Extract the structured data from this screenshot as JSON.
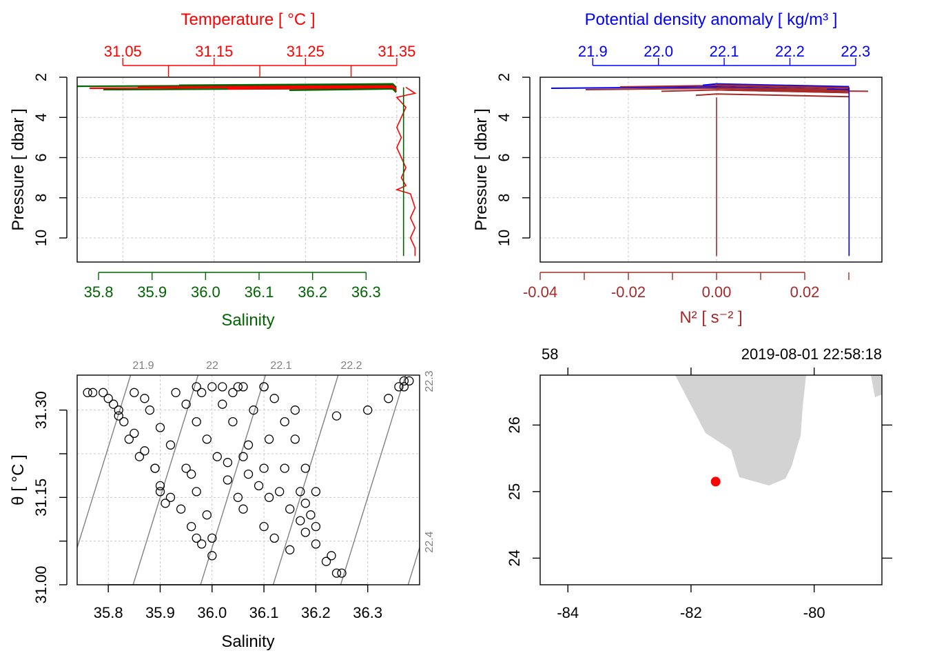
{
  "colors": {
    "temperature": "#ff0000",
    "salinity": "#006400",
    "density": "#0000ff",
    "n2": "#a52a2a",
    "land": "#d3d3d3",
    "station": "#ff0000",
    "isopycnal": "#808080"
  },
  "chart_data": [
    {
      "type": "line",
      "title": "",
      "top_axis_label": "Temperature [ °C ]",
      "top_ticks": [
        "31.05",
        "31.15",
        "31.25",
        "31.35"
      ],
      "top_range": [
        31.0,
        31.375
      ],
      "bottom_axis_label": "Salinity",
      "bottom_ticks": [
        "35.8",
        "35.9",
        "36.0",
        "36.1",
        "36.2",
        "36.3"
      ],
      "bottom_range": [
        35.76,
        36.4
      ],
      "ylabel": "Pressure [ dbar ]",
      "y_ticks": [
        "2",
        "4",
        "6",
        "8",
        "10"
      ],
      "ylim": [
        11.2,
        2.0
      ],
      "grid": true,
      "series": [
        {
          "name": "Temperature",
          "axis": "top",
          "points": [
            [
              31.36,
              2.5
            ],
            [
              31.37,
              2.8
            ],
            [
              31.35,
              3.0
            ],
            [
              31.36,
              3.5
            ],
            [
              31.355,
              4.0
            ],
            [
              31.35,
              4.5
            ],
            [
              31.355,
              5.0
            ],
            [
              31.35,
              5.5
            ],
            [
              31.355,
              6.0
            ],
            [
              31.36,
              6.5
            ],
            [
              31.355,
              7.0
            ],
            [
              31.36,
              7.4
            ],
            [
              31.35,
              7.6
            ],
            [
              31.365,
              7.8
            ],
            [
              31.37,
              8.5
            ],
            [
              31.365,
              9.0
            ],
            [
              31.37,
              9.5
            ],
            [
              31.365,
              10.0
            ],
            [
              31.37,
              10.5
            ],
            [
              31.37,
              10.9
            ]
          ]
        },
        {
          "name": "Salinity",
          "axis": "bottom",
          "points": [
            [
              36.37,
              2.5
            ],
            [
              36.37,
              3.0
            ],
            [
              36.37,
              4.0
            ],
            [
              36.37,
              5.0
            ],
            [
              36.37,
              6.0
            ],
            [
              36.37,
              7.0
            ],
            [
              36.37,
              8.0
            ],
            [
              36.37,
              9.0
            ],
            [
              36.37,
              10.0
            ],
            [
              36.37,
              10.9
            ]
          ]
        }
      ]
    },
    {
      "type": "line",
      "title": "",
      "top_axis_label": "Potential density anomaly [ kg/m³ ]",
      "top_ticks": [
        "21.9",
        "22.0",
        "22.1",
        "22.2",
        "22.3"
      ],
      "top_range": [
        21.82,
        22.34
      ],
      "bottom_axis_label": "N² [ s⁻² ]",
      "bottom_ticks": [
        "-0.04",
        "-0.02",
        "0.00",
        "0.02"
      ],
      "bottom_range": [
        -0.04,
        0.0375
      ],
      "ylabel": "Pressure [ dbar ]",
      "y_ticks": [
        "2",
        "4",
        "6",
        "8",
        "10"
      ],
      "ylim": [
        11.2,
        2.0
      ],
      "grid": true,
      "series": [
        {
          "name": "Potential density anomaly",
          "axis": "top",
          "points": [
            [
              22.29,
              2.5
            ],
            [
              22.29,
              3.0
            ],
            [
              22.29,
              4.0
            ],
            [
              22.29,
              5.0
            ],
            [
              22.29,
              6.0
            ],
            [
              22.29,
              7.0
            ],
            [
              22.29,
              7.5
            ],
            [
              22.29,
              8.0
            ],
            [
              22.29,
              9.0
            ],
            [
              22.29,
              10.0
            ],
            [
              22.29,
              10.9
            ]
          ]
        },
        {
          "name": "N²",
          "axis": "bottom",
          "points": [
            [
              0.0,
              3.0
            ],
            [
              0.0,
              4.0
            ],
            [
              0.0,
              5.0
            ],
            [
              0.0,
              6.0
            ],
            [
              0.0,
              7.0
            ],
            [
              0.0,
              8.0
            ],
            [
              0.0,
              9.0
            ],
            [
              0.0,
              10.0
            ],
            [
              0.0,
              10.9
            ]
          ]
        }
      ]
    },
    {
      "type": "scatter",
      "title": "",
      "xlabel": "Salinity",
      "ylabel": "θ [ °C ]",
      "x_ticks": [
        "35.8",
        "35.9",
        "36.0",
        "36.1",
        "36.2",
        "36.3"
      ],
      "xlim": [
        35.74,
        36.4
      ],
      "y_ticks": [
        "31.00",
        "31.15",
        "31.30"
      ],
      "ylim": [
        31.0,
        31.36
      ],
      "grid": true,
      "isopycnal_labels": [
        "21.9",
        "22",
        "22.1",
        "22.2",
        "22.3",
        "22.4"
      ],
      "points": [
        [
          35.76,
          31.33
        ],
        [
          35.77,
          31.33
        ],
        [
          35.79,
          31.33
        ],
        [
          35.8,
          31.32
        ],
        [
          35.81,
          31.31
        ],
        [
          35.82,
          31.3
        ],
        [
          35.83,
          31.28
        ],
        [
          35.85,
          31.26
        ],
        [
          35.87,
          31.23
        ],
        [
          35.89,
          31.2
        ],
        [
          35.9,
          31.17
        ],
        [
          35.92,
          31.15
        ],
        [
          35.94,
          31.13
        ],
        [
          35.85,
          31.33
        ],
        [
          35.87,
          31.32
        ],
        [
          35.88,
          31.3
        ],
        [
          35.9,
          31.27
        ],
        [
          35.92,
          31.24
        ],
        [
          35.95,
          31.2
        ],
        [
          35.97,
          31.16
        ],
        [
          35.99,
          31.12
        ],
        [
          36.0,
          31.08
        ],
        [
          36.0,
          31.05
        ],
        [
          35.93,
          31.33
        ],
        [
          35.95,
          31.31
        ],
        [
          35.97,
          31.28
        ],
        [
          35.99,
          31.25
        ],
        [
          36.01,
          31.22
        ],
        [
          36.03,
          31.18
        ],
        [
          36.05,
          31.15
        ],
        [
          36.06,
          31.13
        ],
        [
          36.0,
          31.34
        ],
        [
          36.02,
          31.31
        ],
        [
          36.04,
          31.28
        ],
        [
          36.07,
          31.24
        ],
        [
          36.1,
          31.2
        ],
        [
          36.13,
          31.16
        ],
        [
          36.15,
          31.13
        ],
        [
          36.17,
          31.11
        ],
        [
          36.2,
          31.07
        ],
        [
          36.22,
          31.04
        ],
        [
          36.24,
          31.02
        ],
        [
          36.25,
          31.02
        ],
        [
          36.05,
          31.34
        ],
        [
          36.08,
          31.3
        ],
        [
          36.11,
          31.25
        ],
        [
          36.14,
          31.2
        ],
        [
          36.17,
          31.16
        ],
        [
          36.18,
          31.14
        ],
        [
          36.1,
          31.34
        ],
        [
          36.12,
          31.32
        ],
        [
          36.14,
          31.28
        ],
        [
          36.16,
          31.25
        ],
        [
          36.18,
          31.2
        ],
        [
          36.2,
          31.16
        ],
        [
          35.97,
          31.34
        ],
        [
          36.02,
          31.34
        ],
        [
          36.06,
          31.34
        ],
        [
          36.1,
          31.34
        ],
        [
          35.98,
          31.33
        ],
        [
          36.04,
          31.33
        ],
        [
          36.36,
          31.34
        ],
        [
          36.37,
          31.35
        ],
        [
          36.38,
          31.35
        ],
        [
          36.37,
          31.34
        ],
        [
          36.34,
          31.32
        ],
        [
          36.3,
          31.3
        ],
        [
          36.24,
          31.29
        ],
        [
          36.16,
          31.3
        ],
        [
          35.89,
          31.2
        ],
        [
          35.9,
          31.16
        ],
        [
          35.91,
          31.14
        ],
        [
          35.96,
          31.1
        ],
        [
          35.97,
          31.08
        ],
        [
          35.98,
          31.07
        ],
        [
          36.1,
          31.1
        ],
        [
          36.12,
          31.08
        ],
        [
          36.15,
          31.06
        ],
        [
          36.18,
          31.09
        ],
        [
          36.19,
          31.12
        ],
        [
          36.2,
          31.1
        ],
        [
          36.23,
          31.05
        ],
        [
          36.06,
          31.22
        ],
        [
          36.07,
          31.19
        ],
        [
          36.03,
          31.21
        ],
        [
          35.96,
          31.19
        ],
        [
          36.09,
          31.17
        ],
        [
          36.11,
          31.15
        ],
        [
          35.86,
          31.22
        ],
        [
          35.84,
          31.25
        ],
        [
          35.82,
          31.29
        ]
      ]
    },
    {
      "type": "map",
      "title": "",
      "top_left_label": "58",
      "top_right_label": "2019-08-01 22:58:18",
      "x_ticks": [
        "-84",
        "-82",
        "-80"
      ],
      "xlim": [
        -84.45,
        -78.9
      ],
      "y_ticks": [
        "24",
        "25",
        "26"
      ],
      "ylim": [
        23.6,
        26.75
      ],
      "station": {
        "lon": -81.6,
        "lat": 25.15
      }
    }
  ]
}
